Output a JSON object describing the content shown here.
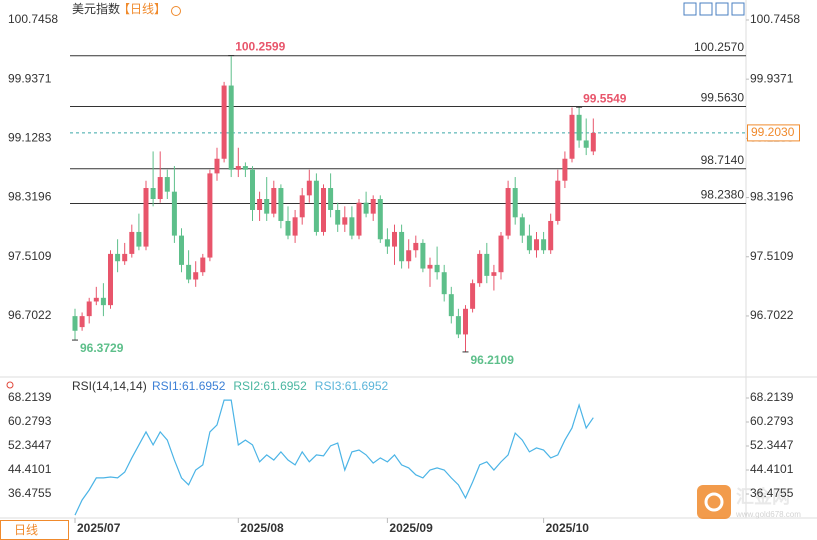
{
  "header": {
    "title": "美元指数",
    "period": "【日线】",
    "tab": "日线"
  },
  "watermark": {
    "brand": "汇金网",
    "site": "www.gold678.com"
  },
  "chart_data": [
    {
      "type": "candlestick",
      "categories": [
        "2025/07",
        null,
        null,
        null,
        null,
        null,
        null,
        null,
        null,
        null,
        null,
        null,
        null,
        null,
        null,
        null,
        null,
        null,
        null,
        null,
        null,
        null,
        null,
        "2025/08",
        null,
        null,
        null,
        null,
        null,
        null,
        null,
        null,
        null,
        null,
        null,
        null,
        null,
        null,
        null,
        null,
        null,
        null,
        null,
        null,
        "2025/09",
        null,
        null,
        null,
        null,
        null,
        null,
        null,
        null,
        null,
        null,
        null,
        null,
        null,
        null,
        null,
        null,
        null,
        null,
        null,
        null,
        null,
        "2025/10",
        null,
        null,
        null,
        null,
        null,
        null,
        null
      ],
      "ohlc": [
        [
          96.7,
          96.8,
          96.3729,
          96.5
        ],
        [
          96.55,
          96.75,
          96.5,
          96.7
        ],
        [
          96.7,
          96.95,
          96.6,
          96.9
        ],
        [
          96.9,
          97.1,
          96.85,
          96.95
        ],
        [
          96.95,
          97.15,
          96.7,
          96.85
        ],
        [
          96.85,
          97.6,
          96.8,
          97.55
        ],
        [
          97.55,
          97.75,
          97.3,
          97.45
        ],
        [
          97.45,
          97.7,
          97.4,
          97.55
        ],
        [
          97.55,
          97.95,
          97.5,
          97.85
        ],
        [
          97.85,
          98.1,
          97.6,
          97.65
        ],
        [
          97.65,
          98.55,
          97.6,
          98.45
        ],
        [
          98.45,
          98.95,
          98.2,
          98.3
        ],
        [
          98.3,
          98.95,
          98.25,
          98.6
        ],
        [
          98.6,
          98.7,
          98.3,
          98.4
        ],
        [
          98.4,
          98.75,
          97.7,
          97.8
        ],
        [
          97.8,
          97.9,
          97.3,
          97.4
        ],
        [
          97.4,
          97.6,
          97.15,
          97.2
        ],
        [
          97.2,
          97.45,
          97.1,
          97.3
        ],
        [
          97.3,
          97.55,
          97.25,
          97.5
        ],
        [
          97.5,
          98.7,
          97.45,
          98.65
        ],
        [
          98.65,
          99.0,
          98.55,
          98.85
        ],
        [
          98.85,
          99.9,
          98.8,
          99.85
        ],
        [
          99.85,
          100.2599,
          98.6,
          98.7
        ],
        [
          98.7,
          99.0,
          98.6,
          98.75
        ],
        [
          98.75,
          98.8,
          98.6,
          98.7
        ],
        [
          98.7,
          98.75,
          98.0,
          98.15
        ],
        [
          98.15,
          98.4,
          98.0,
          98.3
        ],
        [
          98.3,
          98.6,
          98.0,
          98.1
        ],
        [
          98.1,
          98.55,
          98.05,
          98.45
        ],
        [
          98.45,
          98.5,
          97.9,
          98.0
        ],
        [
          98.0,
          98.2,
          97.75,
          97.8
        ],
        [
          97.8,
          98.15,
          97.7,
          98.05
        ],
        [
          98.05,
          98.45,
          97.95,
          98.35
        ],
        [
          98.35,
          98.7,
          98.25,
          98.55
        ],
        [
          98.55,
          98.65,
          97.8,
          97.85
        ],
        [
          97.85,
          98.5,
          97.8,
          98.45
        ],
        [
          98.45,
          98.65,
          98.05,
          98.15
        ],
        [
          98.15,
          98.25,
          97.85,
          97.95
        ],
        [
          97.95,
          98.2,
          97.85,
          98.05
        ],
        [
          98.05,
          98.2,
          97.75,
          97.8
        ],
        [
          97.8,
          98.3,
          97.75,
          98.25
        ],
        [
          98.25,
          98.4,
          98.05,
          98.1
        ],
        [
          98.1,
          98.35,
          98.0,
          98.3
        ],
        [
          98.3,
          98.35,
          97.7,
          97.75
        ],
        [
          97.75,
          97.9,
          97.55,
          97.65
        ],
        [
          97.65,
          97.95,
          97.4,
          97.85
        ],
        [
          97.85,
          97.95,
          97.35,
          97.45
        ],
        [
          97.45,
          97.75,
          97.35,
          97.6
        ],
        [
          97.6,
          97.8,
          97.5,
          97.7
        ],
        [
          97.7,
          97.75,
          97.3,
          97.35
        ],
        [
          97.35,
          97.5,
          97.1,
          97.4
        ],
        [
          97.4,
          97.65,
          97.2,
          97.3
        ],
        [
          97.3,
          97.4,
          96.9,
          97.0
        ],
        [
          97.0,
          97.1,
          96.6,
          96.7
        ],
        [
          96.7,
          96.8,
          96.4,
          96.45
        ],
        [
          96.45,
          96.85,
          96.2109,
          96.8
        ],
        [
          96.8,
          97.2,
          96.75,
          97.15
        ],
        [
          97.15,
          97.6,
          97.1,
          97.55
        ],
        [
          97.55,
          97.7,
          97.15,
          97.25
        ],
        [
          97.25,
          97.4,
          97.05,
          97.3
        ],
        [
          97.3,
          97.85,
          97.2,
          97.8
        ],
        [
          97.8,
          98.55,
          97.75,
          98.45
        ],
        [
          98.45,
          98.6,
          97.95,
          98.05
        ],
        [
          98.05,
          98.1,
          97.7,
          97.8
        ],
        [
          97.8,
          97.95,
          97.55,
          97.6
        ],
        [
          97.6,
          97.85,
          97.5,
          97.75
        ],
        [
          97.75,
          97.85,
          97.55,
          97.6
        ],
        [
          97.6,
          98.1,
          97.55,
          98.0
        ],
        [
          98.0,
          98.7,
          97.95,
          98.55
        ],
        [
          98.55,
          98.95,
          98.45,
          98.85
        ],
        [
          98.85,
          99.55,
          98.8,
          99.45
        ],
        [
          99.45,
          99.5549,
          99.0,
          99.1
        ],
        [
          99.1,
          99.4,
          98.9,
          99.0
        ],
        [
          98.95,
          99.4,
          98.9,
          99.203
        ]
      ],
      "up_color": "#e8556b",
      "down_color": "#5dbf8a",
      "ylim": [
        95.964,
        100.882
      ],
      "yticks": [
        96.7022,
        97.5109,
        98.3196,
        99.1283,
        99.9371,
        100.7458
      ],
      "levels": [
        {
          "value": 100.257,
          "label": "100.2570"
        },
        {
          "value": 99.563,
          "label": "99.5630"
        },
        {
          "value": 98.714,
          "label": "98.7140"
        },
        {
          "value": 98.238,
          "label": "98.2380"
        }
      ],
      "last": {
        "value": 99.203,
        "label": "99.2030"
      },
      "last_color": "#f08a2c"
    },
    {
      "type": "line",
      "title": "RSI(14,14,14)",
      "legend": [
        "RSI1:61.6952",
        "RSI2:61.6952",
        "RSI3:61.6952"
      ],
      "legend_colors": [
        "#3b7fd6",
        "#49b6a0",
        "#5ab4d9"
      ],
      "values": [
        29.5,
        34.5,
        37.8,
        41.8,
        41.8,
        42.1,
        41.8,
        43.7,
        48.4,
        52.7,
        57.0,
        52.7,
        57.0,
        54.3,
        47.7,
        41.8,
        39.5,
        44.4,
        46.1,
        57.0,
        59.3,
        67.5,
        67.5,
        52.7,
        54.3,
        52.7,
        47.1,
        49.4,
        47.7,
        50.4,
        47.7,
        46.1,
        50.4,
        47.1,
        49.4,
        49.1,
        52.4,
        53.3,
        44.4,
        50.4,
        51.0,
        49.4,
        46.7,
        48.4,
        47.1,
        49.4,
        46.1,
        45.1,
        42.8,
        41.8,
        44.4,
        45.1,
        44.4,
        41.8,
        39.5,
        35.2,
        40.4,
        46.1,
        47.1,
        44.4,
        47.1,
        49.4,
        56.6,
        54.3,
        50.4,
        51.7,
        51.0,
        48.4,
        49.4,
        54.3,
        58.3,
        65.9,
        58.3,
        61.6952
      ],
      "color": "#4bb4e6",
      "ylim": [
        28.54,
        74.16
      ],
      "yticks": [
        36.4755,
        44.4101,
        52.3447,
        60.2793,
        68.2139
      ]
    }
  ]
}
